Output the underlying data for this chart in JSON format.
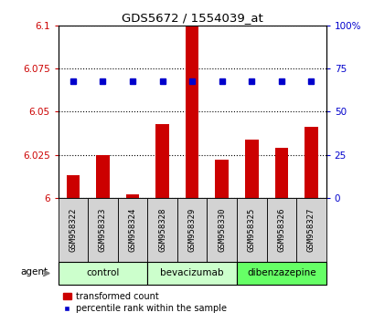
{
  "title": "GDS5672 / 1554039_at",
  "samples": [
    "GSM958322",
    "GSM958323",
    "GSM958324",
    "GSM958328",
    "GSM958329",
    "GSM958330",
    "GSM958325",
    "GSM958326",
    "GSM958327"
  ],
  "bar_values": [
    6.013,
    6.025,
    6.002,
    6.043,
    6.1,
    6.022,
    6.034,
    6.029,
    6.041
  ],
  "percentile_values": [
    68,
    68,
    68,
    68,
    68,
    68,
    68,
    68,
    68
  ],
  "bar_color": "#cc0000",
  "dot_color": "#0000cc",
  "ylim_left": [
    6.0,
    6.1
  ],
  "ylim_right": [
    0,
    100
  ],
  "yticks_left": [
    6.0,
    6.025,
    6.05,
    6.075,
    6.1
  ],
  "yticks_right": [
    0,
    25,
    50,
    75,
    100
  ],
  "groups": [
    {
      "label": "control",
      "start": 0,
      "end": 3,
      "color": "#ccffcc"
    },
    {
      "label": "bevacizumab",
      "start": 3,
      "end": 6,
      "color": "#ccffcc"
    },
    {
      "label": "dibenzazepine",
      "start": 6,
      "end": 9,
      "color": "#66ff66"
    }
  ],
  "legend_bar_label": "transformed count",
  "legend_dot_label": "percentile rank within the sample",
  "agent_label": "agent",
  "background_color": "#ffffff",
  "tick_color_left": "#cc0000",
  "tick_color_right": "#0000cc"
}
